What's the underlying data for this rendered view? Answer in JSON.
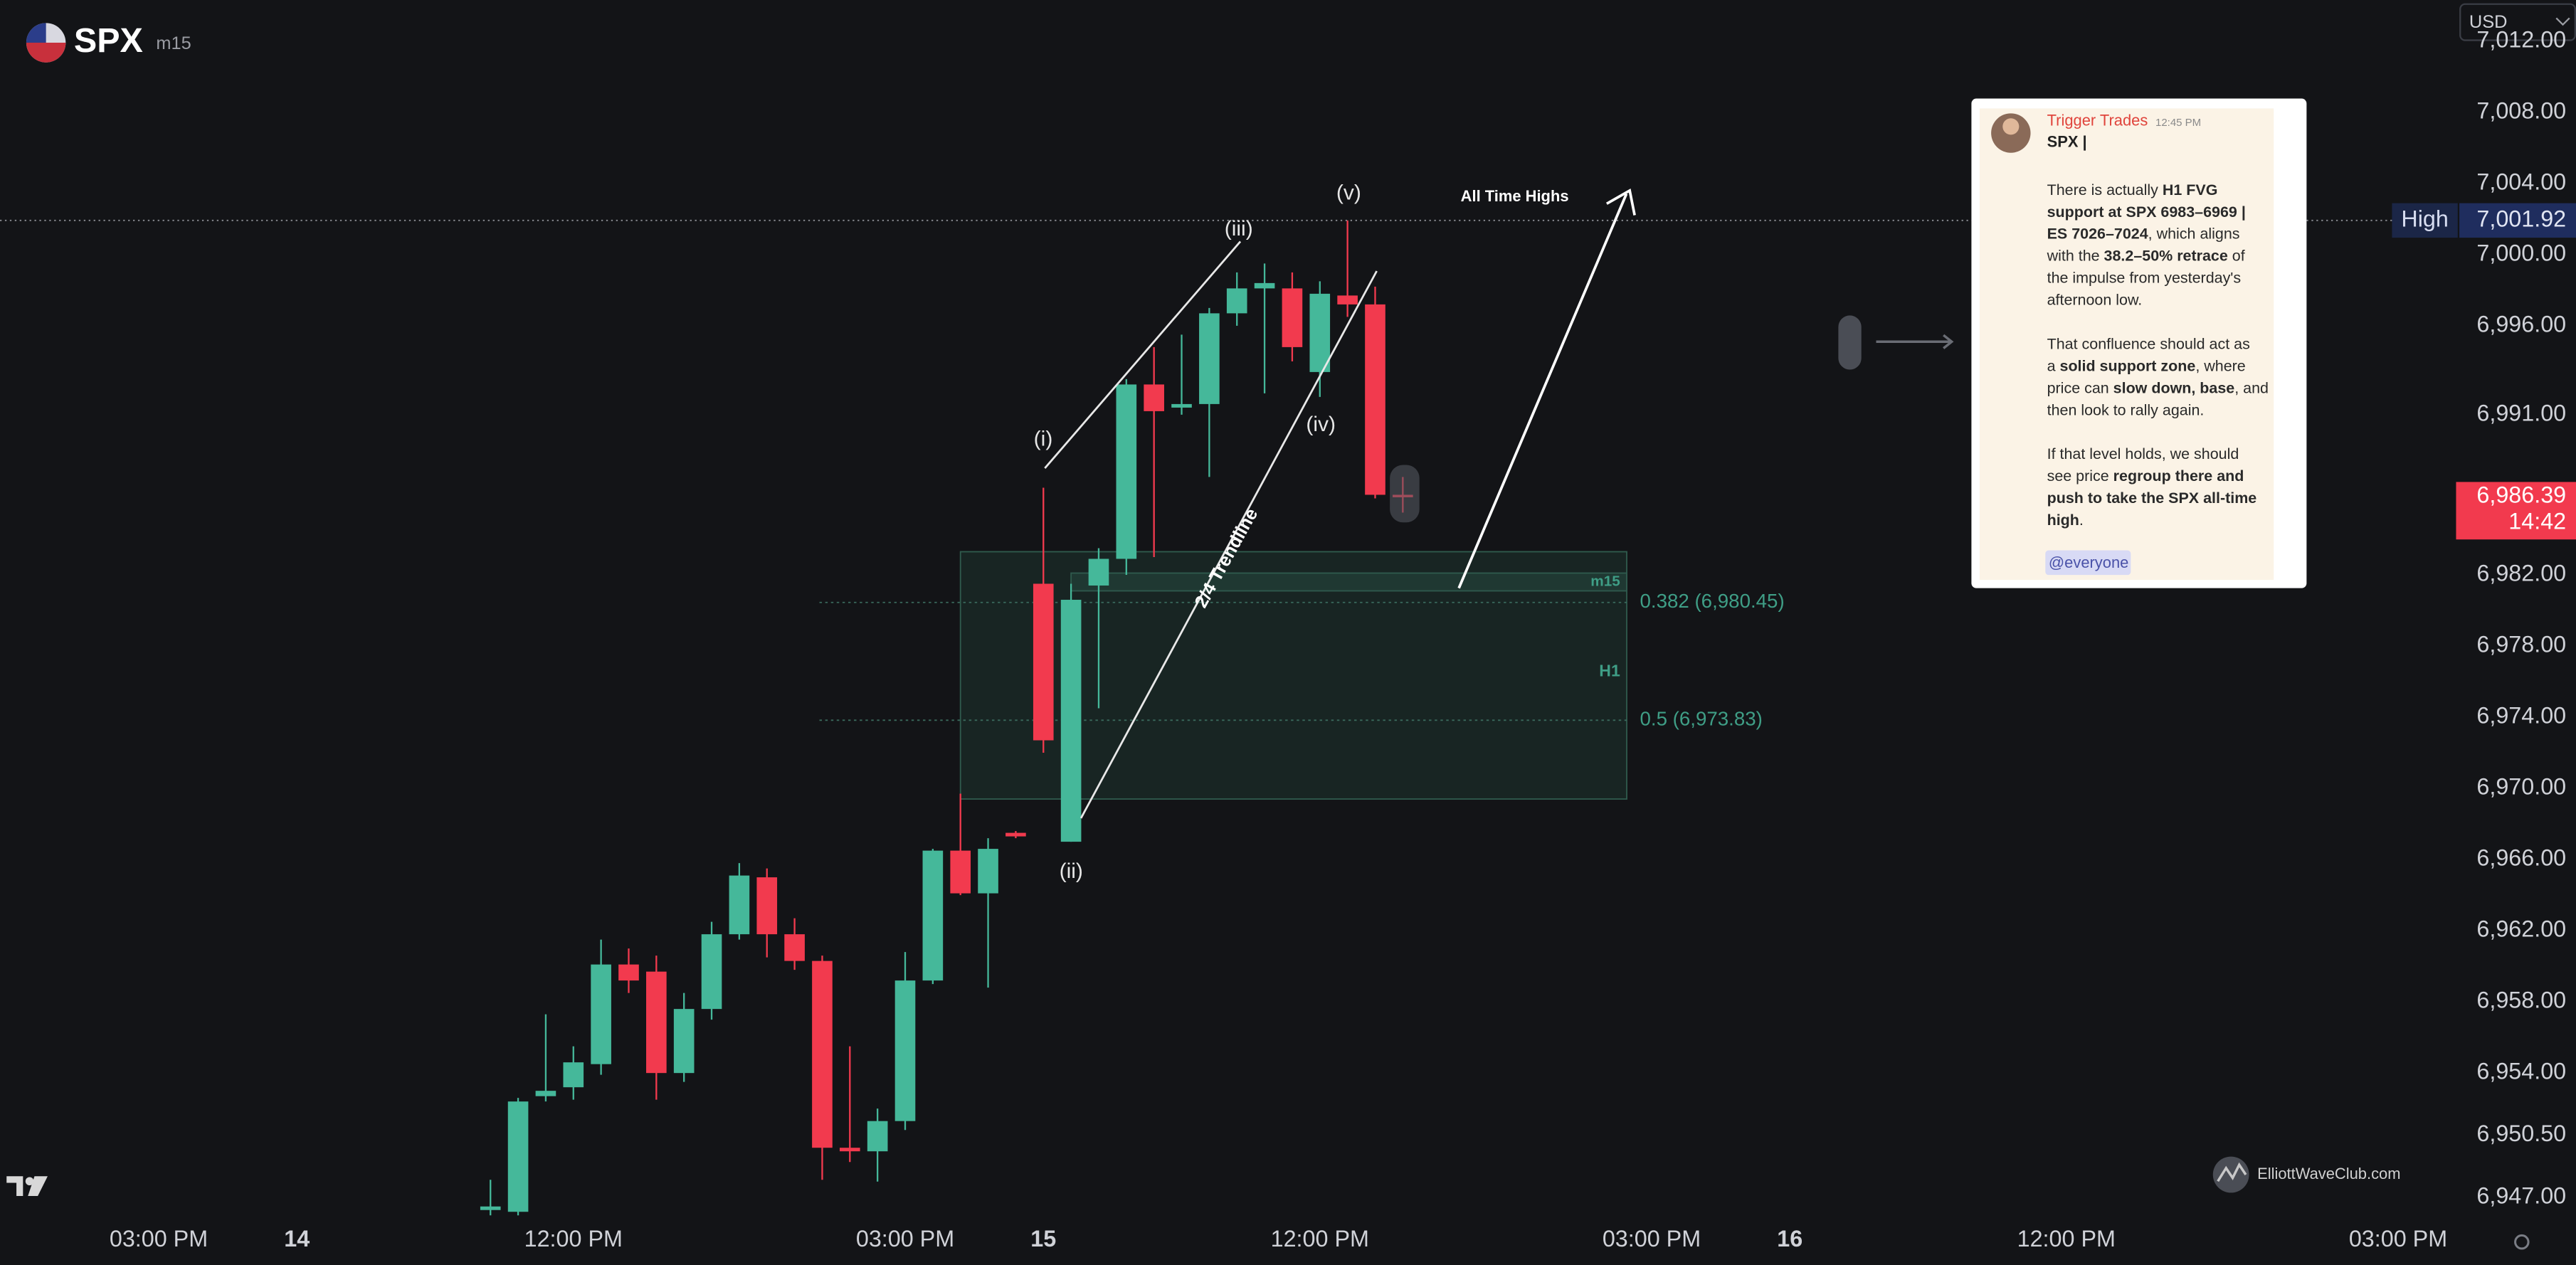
{
  "header": {
    "symbol": "SPX",
    "interval": "m15",
    "currency": "USD"
  },
  "chart_data": {
    "type": "candlestick",
    "x": [
      -3,
      -2,
      -1,
      0,
      1,
      2,
      3,
      4,
      5,
      6,
      7,
      8,
      9,
      10,
      11,
      12,
      13,
      14,
      15,
      16,
      17,
      18,
      19,
      20,
      21,
      22,
      23,
      24,
      25,
      26,
      27,
      28,
      29,
      30
    ],
    "open": [
      6946.3,
      6946.2,
      6952.7,
      6953.2,
      6954.5,
      6960.1,
      6959.7,
      6954.0,
      6957.6,
      6961.8,
      6965.0,
      6961.8,
      6960.3,
      6949.8,
      6949.6,
      6951.3,
      6959.2,
      6966.5,
      6964.1,
      6967.5,
      6981.5,
      6967.0,
      6981.4,
      6982.9,
      6992.7,
      6991.4,
      6991.6,
      6996.7,
      6998.1,
      6998.1,
      6993.4,
      6997.7,
      6997.2,
      6986.5
    ],
    "high": [
      6948.0,
      6952.6,
      6957.3,
      6955.5,
      6961.5,
      6961.0,
      6960.6,
      6958.5,
      6962.5,
      6965.8,
      6965.5,
      6962.7,
      6960.6,
      6955.5,
      6952.0,
      6960.8,
      6966.6,
      6969.7,
      6967.2,
      6967.6,
      6986.9,
      6981.5,
      6983.5,
      6993.0,
      6994.8,
      6995.5,
      6997.0,
      6999.0,
      6999.5,
      6999.0,
      6998.5,
      7001.92,
      6998.2,
      6987.5
    ],
    "low": [
      6946.0,
      6946.0,
      6952.4,
      6952.5,
      6953.9,
      6958.5,
      6952.5,
      6953.5,
      6957.0,
      6961.5,
      6960.5,
      6959.8,
      6948.0,
      6949.0,
      6947.9,
      6950.8,
      6959.0,
      6964.0,
      6958.8,
      6967.2,
      6972.0,
      6967.0,
      6974.5,
      6982.0,
      6983.0,
      6991.0,
      6987.5,
      6996.0,
      6992.2,
      6994.0,
      6992.0,
      6996.5,
      6986.3,
      6985.5
    ],
    "close": [
      6946.5,
      6952.4,
      6953.0,
      6954.6,
      6960.1,
      6959.2,
      6954.0,
      6957.6,
      6961.8,
      6965.1,
      6961.8,
      6960.3,
      6949.8,
      6949.6,
      6951.3,
      6959.2,
      6966.5,
      6964.1,
      6966.6,
      6967.3,
      6972.7,
      6980.6,
      6982.9,
      6992.7,
      6991.2,
      6991.6,
      6996.7,
      6998.1,
      6998.4,
      6994.8,
      6997.8,
      6997.2,
      6986.5,
      6986.39
    ],
    "up_color": "#45b89a",
    "down_color": "#f23a4e",
    "xlim": [
      -20.74,
      67.8
    ],
    "ylim": [
      6945.98,
      7014.31
    ],
    "xticks": [
      {
        "value": -15,
        "label": "03:00 PM"
      },
      {
        "value": -10,
        "label": "14"
      },
      {
        "value": 0,
        "label": "12:00 PM"
      },
      {
        "value": 12,
        "label": "03:00 PM"
      },
      {
        "value": 17,
        "label": "15"
      },
      {
        "value": 27,
        "label": "12:00 PM"
      },
      {
        "value": 39,
        "label": "03:00 PM"
      },
      {
        "value": 44,
        "label": "16"
      },
      {
        "value": 54,
        "label": "12:00 PM"
      },
      {
        "value": 66,
        "label": "03:00 PM"
      }
    ],
    "yticks": [
      {
        "value": 7012,
        "label": "7,012.00"
      },
      {
        "value": 7008,
        "label": "7,008.00"
      },
      {
        "value": 7004,
        "label": "7,004.00"
      },
      {
        "value": 7000,
        "label": "7,000.00"
      },
      {
        "value": 6996,
        "label": "6,996.00"
      },
      {
        "value": 6991,
        "label": "6,991.00"
      },
      {
        "value": 6982,
        "label": "6,982.00"
      },
      {
        "value": 6978,
        "label": "6,978.00"
      },
      {
        "value": 6974,
        "label": "6,974.00"
      },
      {
        "value": 6970,
        "label": "6,970.00"
      },
      {
        "value": 6966,
        "label": "6,966.00"
      },
      {
        "value": 6962,
        "label": "6,962.00"
      },
      {
        "value": 6958,
        "label": "6,958.00"
      },
      {
        "value": 6954,
        "label": "6,954.00"
      },
      {
        "value": 6950.5,
        "label": "6,950.50"
      },
      {
        "value": 6947,
        "label": "6,947.00"
      }
    ],
    "high_marker": {
      "label": "High",
      "value": 7001.92,
      "value_label": "7,001.92"
    },
    "last_price": {
      "value": 6986.39,
      "value_label": "6,986.39",
      "countdown": "14:42"
    },
    "zones": [
      {
        "label": "H1",
        "top": 6983.3,
        "bottom": 6969.4,
        "x": [
          14,
          38.1
        ]
      },
      {
        "label": "m15",
        "top": 6982.1,
        "bottom": 6981.1,
        "x": [
          18,
          38.1
        ]
      }
    ],
    "fib_levels": [
      {
        "label": "0.382 (6,980.45)",
        "value": 6980.45,
        "x": [
          8.9,
          38.1
        ]
      },
      {
        "label": "0.5 (6,973.83)",
        "value": 6973.83,
        "x": [
          8.9,
          38.1
        ]
      }
    ],
    "annotations": {
      "waves": [
        "(i)",
        "(ii)",
        "(iii)",
        "(iv)",
        "(v)"
      ],
      "trendline": "2/4 Trendline",
      "target": "All Time Highs"
    }
  },
  "message": {
    "author": "Trigger Trades",
    "time": "12:45 PM",
    "title": "SPX |",
    "paragraphs": [
      [
        [
          {
            "text": "There is actually ",
            "bold": false
          },
          {
            "text": "H1 FVG",
            "bold": true
          }
        ],
        [
          {
            "text": "support at SPX 6983–6969 |",
            "bold": true
          }
        ],
        [
          {
            "text": "ES 7026–7024",
            "bold": true
          },
          {
            "text": ", which aligns",
            "bold": false
          }
        ],
        [
          {
            "text": "with the ",
            "bold": false
          },
          {
            "text": "38.2–50% retrace",
            "bold": true
          },
          {
            "text": " of",
            "bold": false
          }
        ],
        [
          {
            "text": "the impulse from yesterday's",
            "bold": false
          }
        ],
        [
          {
            "text": "afternoon low.",
            "bold": false
          }
        ]
      ],
      [
        [
          {
            "text": "That confluence should act as",
            "bold": false
          }
        ],
        [
          {
            "text": "a ",
            "bold": false
          },
          {
            "text": "solid support zone",
            "bold": true
          },
          {
            "text": ", where",
            "bold": false
          }
        ],
        [
          {
            "text": "price can ",
            "bold": false
          },
          {
            "text": "slow down, base",
            "bold": true
          },
          {
            "text": ", and",
            "bold": false
          }
        ],
        [
          {
            "text": "then look to rally again.",
            "bold": false
          }
        ]
      ],
      [
        [
          {
            "text": "If that level holds, we should",
            "bold": false
          }
        ],
        [
          {
            "text": "see price ",
            "bold": false
          },
          {
            "text": "regroup there and",
            "bold": true
          }
        ],
        [
          {
            "text": "push to take the SPX all-time",
            "bold": true
          }
        ],
        [
          {
            "text": "high",
            "bold": true
          },
          {
            "text": ".",
            "bold": false
          }
        ]
      ]
    ],
    "mention": "@everyone"
  },
  "watermark": "ElliottWaveClub.com"
}
